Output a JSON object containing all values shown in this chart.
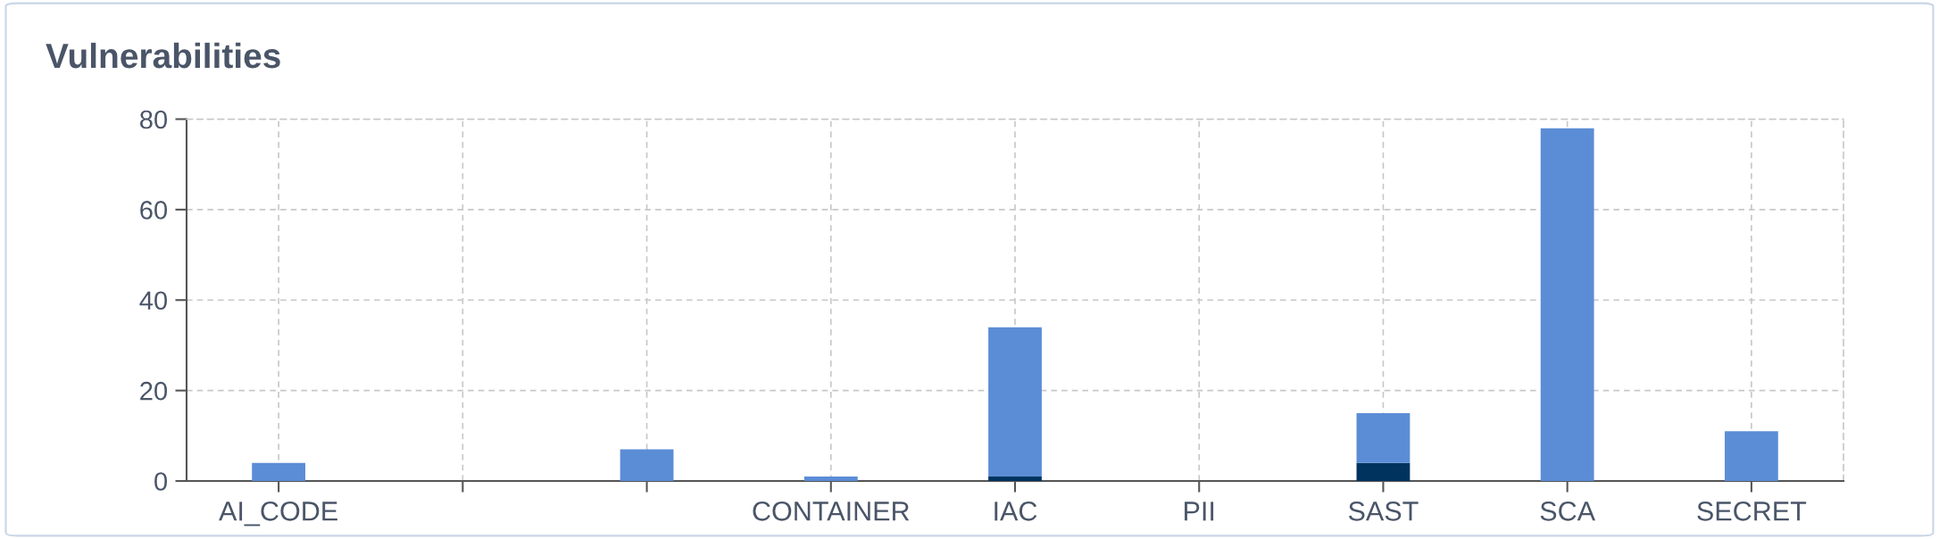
{
  "chart_data": {
    "type": "bar",
    "title": "Vulnerabilities",
    "categories": [
      "AI_CODE",
      null,
      null,
      "CONTAINER",
      "IAC",
      "PII",
      "SAST",
      "SCA",
      "SECRET"
    ],
    "stacked": true,
    "series": [
      {
        "color": "#00345f",
        "values": [
          0,
          0,
          0,
          0,
          1,
          0,
          4,
          0,
          0
        ]
      },
      {
        "color": "#5b8dd6",
        "values": [
          4,
          0,
          7,
          1,
          33,
          0,
          11,
          78,
          11
        ]
      }
    ],
    "ylim": [
      0,
      80
    ],
    "yticks": [
      0,
      20,
      40,
      60,
      80
    ],
    "grid": true,
    "legend": false
  }
}
